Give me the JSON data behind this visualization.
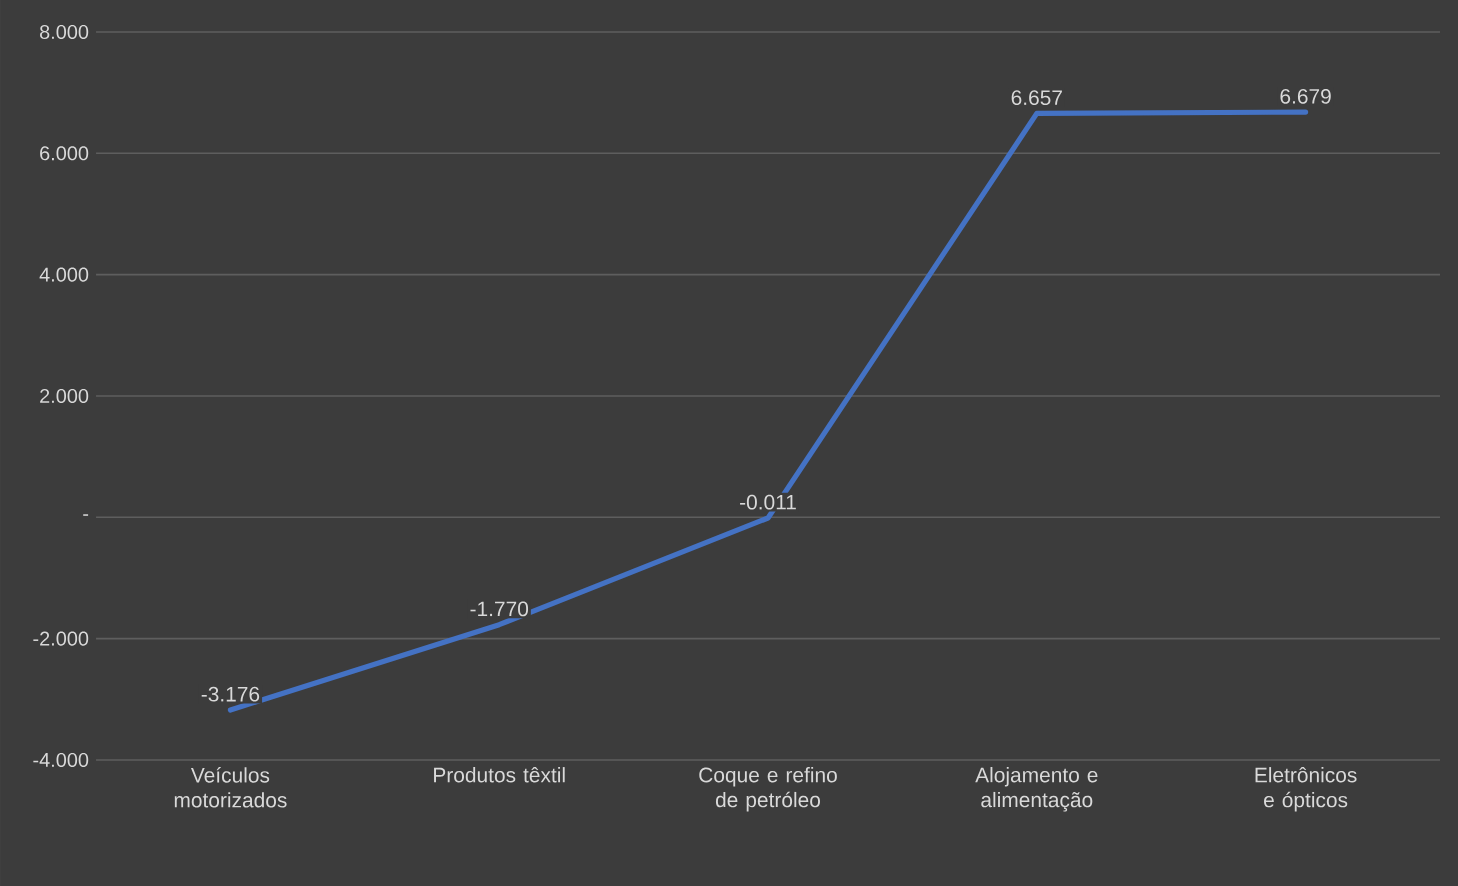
{
  "chart_data": {
    "type": "line",
    "categories": [
      "Veículos motorizados",
      "Produtos têxtil",
      "Coque e refino de petróleo",
      "Alojamento e alimentação",
      "Eletrônicos e ópticos"
    ],
    "series": [
      {
        "color": "#4472c4",
        "values": [
          -3.176,
          -1.77,
          -0.011,
          6.657,
          6.679
        ],
        "value_labels": [
          "-3.176",
          "-1.770",
          "-0.011",
          "6.657",
          "6.679"
        ]
      }
    ],
    "ylim": [
      -4,
      8
    ],
    "yticks": [
      {
        "value": -4,
        "label": "-4.000"
      },
      {
        "value": -2,
        "label": "-2.000"
      },
      {
        "value": 0,
        "label": "-"
      },
      {
        "value": 2,
        "label": "2.000"
      },
      {
        "value": 4,
        "label": "4.000"
      },
      {
        "value": 6,
        "label": "6.000"
      },
      {
        "value": 8,
        "label": "8.000"
      }
    ],
    "grid": "y",
    "marker": "none",
    "line_style": "solid"
  }
}
